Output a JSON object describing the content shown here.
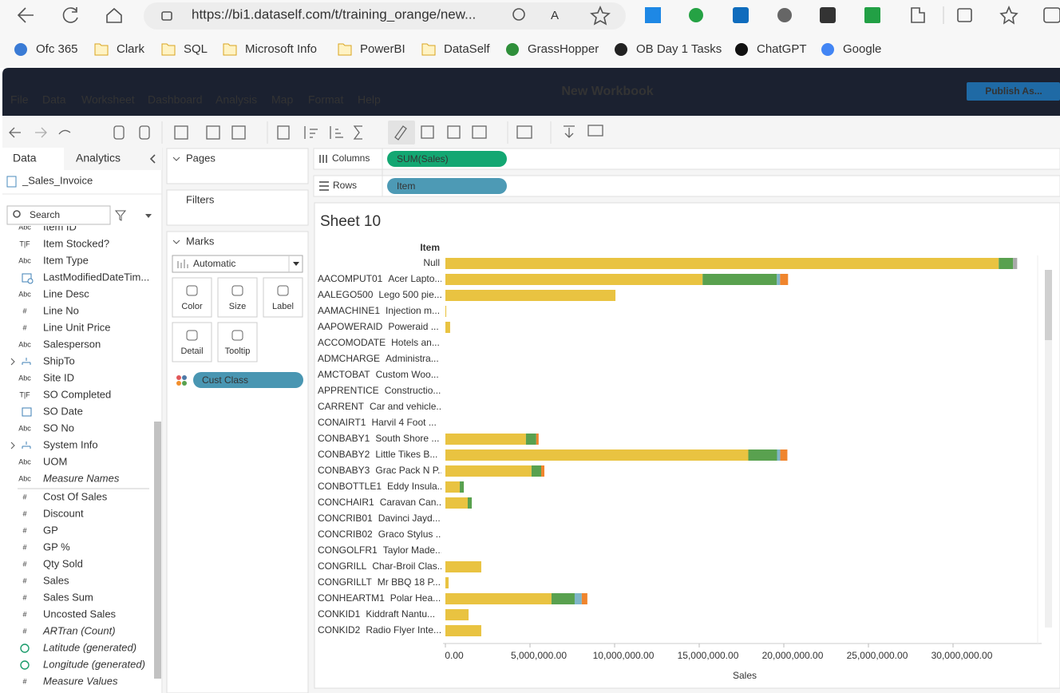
{
  "browser": {
    "url": "https://bi1.dataself.com/t/training_orange/new...",
    "bookmarks": [
      "Ofc 365",
      "Clark",
      "SQL",
      "Microsoft Info",
      "PowerBI",
      "DataSelf",
      "GrassHopper",
      "OB Day 1 Tasks",
      "ChatGPT",
      "Google"
    ]
  },
  "app": {
    "title": "New Workbook",
    "publish": "Publish As...",
    "menu": [
      "File",
      "Data",
      "Worksheet",
      "Dashboard",
      "Analysis",
      "Map",
      "Format",
      "Help"
    ]
  },
  "data_pane": {
    "tabs": [
      "Data",
      "Analytics"
    ],
    "source": "_Sales_Invoice",
    "search": "Search",
    "dimensions": [
      {
        "icon": "Abc",
        "label": "Item ID"
      },
      {
        "icon": "T|F",
        "label": "Item Stocked?"
      },
      {
        "icon": "Abc",
        "label": "Item Type"
      },
      {
        "icon": "datetime",
        "label": "LastModifiedDateTim..."
      },
      {
        "icon": "Abc",
        "label": "Line Desc"
      },
      {
        "icon": "#",
        "label": "Line No"
      },
      {
        "icon": "#",
        "label": "Line Unit Price"
      },
      {
        "icon": "Abc",
        "label": "Salesperson"
      },
      {
        "icon": "hier",
        "label": "ShipTo",
        "expand": true
      },
      {
        "icon": "Abc",
        "label": "Site ID"
      },
      {
        "icon": "T|F",
        "label": "SO Completed"
      },
      {
        "icon": "date",
        "label": "SO Date"
      },
      {
        "icon": "Abc",
        "label": "SO No"
      },
      {
        "icon": "hier",
        "label": "System Info",
        "expand": true
      },
      {
        "icon": "Abc",
        "label": "UOM"
      },
      {
        "icon": "Abc",
        "label": "Measure Names",
        "italic": true
      }
    ],
    "measures": [
      {
        "icon": "#",
        "label": "Cost Of Sales"
      },
      {
        "icon": "#",
        "label": "Discount"
      },
      {
        "icon": "#",
        "label": "GP"
      },
      {
        "icon": "#",
        "label": "GP %"
      },
      {
        "icon": "#",
        "label": "Qty Sold"
      },
      {
        "icon": "#",
        "label": "Sales"
      },
      {
        "icon": "#",
        "label": "Sales Sum"
      },
      {
        "icon": "#",
        "label": "Uncosted Sales"
      },
      {
        "icon": "#",
        "label": "ARTran (Count)",
        "italic": true
      },
      {
        "icon": "globe",
        "label": "Latitude (generated)",
        "italic": true
      },
      {
        "icon": "globe",
        "label": "Longitude (generated)",
        "italic": true
      },
      {
        "icon": "#",
        "label": "Measure Values",
        "italic": true
      }
    ]
  },
  "cards": {
    "pages": "Pages",
    "filters": "Filters",
    "marks": "Marks",
    "mark_type": "Automatic",
    "buttons": [
      "Color",
      "Size",
      "Label",
      "Detail",
      "Tooltip"
    ],
    "color_pill": "Cust Class"
  },
  "shelves": {
    "columns_label": "Columns",
    "columns_pill": "SUM(Sales)",
    "rows_label": "Rows",
    "rows_pill": "Item"
  },
  "sheet": {
    "title": "Sheet 10",
    "chart_data": {
      "type": "bar",
      "orientation": "horizontal",
      "stacked": true,
      "y_label": "Item",
      "x_label": "Sales",
      "categories": [
        "Null",
        "AACOMPUT01",
        "AALEGO500",
        "AAMACHINE1",
        "AAPOWERAID",
        "ACCOMODATE",
        "ADMCHARGE",
        "AMCTOBAT",
        "APPRENTICE",
        "CARRENT",
        "CONAIRT1",
        "CONBABY1",
        "CONBABY2",
        "CONBABY3",
        "CONBOTTLE1",
        "CONCHAIR1",
        "CONCRIB01",
        "CONCRIB02",
        "CONGOLFR1",
        "CONGRILL",
        "CONGRILLT",
        "CONHEARTM1",
        "CONKID1",
        "CONKID2"
      ],
      "descriptions": [
        null,
        "Acer Lapto...",
        "Lego 500 pie...",
        "Injection m...",
        "Poweraid ...",
        "Hotels an...",
        "Administra...",
        "Custom Woo...",
        "Constructio...",
        "Car and vehicle...",
        "Harvil 4 Foot ...",
        "South Shore ...",
        "Little Tikes B...",
        "Grac Pack N P...",
        "Eddy Insula...",
        "Caravan Can...",
        "Davinci Jayd...",
        "Graco Stylus ...",
        "Taylor Made...",
        "Char-Broil Clas...",
        "Mr BBQ 18 P...",
        "Polar Hea...",
        "Kiddraft Nantu...",
        "Radio Flyer Inte..."
      ],
      "series": [
        {
          "color": "#e9c341",
          "values": [
            32700000,
            15200000,
            10050000,
            50000,
            280000,
            null,
            null,
            null,
            null,
            null,
            null,
            4760000,
            17900000,
            5090000,
            850000,
            1320000,
            null,
            null,
            null,
            2120000,
            190000,
            6270000,
            1370000,
            2120000
          ]
        },
        {
          "color": "#59a14f",
          "values": [
            850000,
            4390000,
            null,
            null,
            null,
            null,
            null,
            null,
            null,
            null,
            null,
            610000,
            1700000,
            570000,
            240000,
            240000,
            null,
            null,
            null,
            null,
            null,
            1370000,
            null,
            null
          ]
        },
        {
          "color": "#7fb5c8",
          "values": [
            null,
            190000,
            null,
            null,
            null,
            null,
            null,
            null,
            null,
            null,
            null,
            null,
            190000,
            null,
            null,
            null,
            null,
            null,
            null,
            null,
            null,
            420000,
            null,
            null
          ]
        },
        {
          "color": "#f0852d",
          "values": [
            null,
            470000,
            null,
            null,
            null,
            null,
            null,
            null,
            null,
            null,
            null,
            140000,
            420000,
            190000,
            null,
            null,
            null,
            null,
            null,
            null,
            null,
            330000,
            null,
            null
          ]
        },
        {
          "color": "#a9a9a9",
          "values": [
            240000,
            null,
            null,
            null,
            null,
            null,
            null,
            null,
            null,
            null,
            null,
            null,
            null,
            null,
            null,
            null,
            null,
            null,
            null,
            null,
            null,
            null,
            null,
            null
          ]
        }
      ],
      "xlim": [
        0,
        35000000
      ],
      "xticks": [
        {
          "value": 0,
          "label": "0.00"
        },
        {
          "value": 5000000,
          "label": "5,000,000.00"
        },
        {
          "value": 10000000,
          "label": "10,000,000.00"
        },
        {
          "value": 15000000,
          "label": "15,000,000.00"
        },
        {
          "value": 20000000,
          "label": "20,000,000.00"
        },
        {
          "value": 25000000,
          "label": "25,000,000.00"
        },
        {
          "value": 30000000,
          "label": "30,000,000.00"
        }
      ]
    }
  }
}
